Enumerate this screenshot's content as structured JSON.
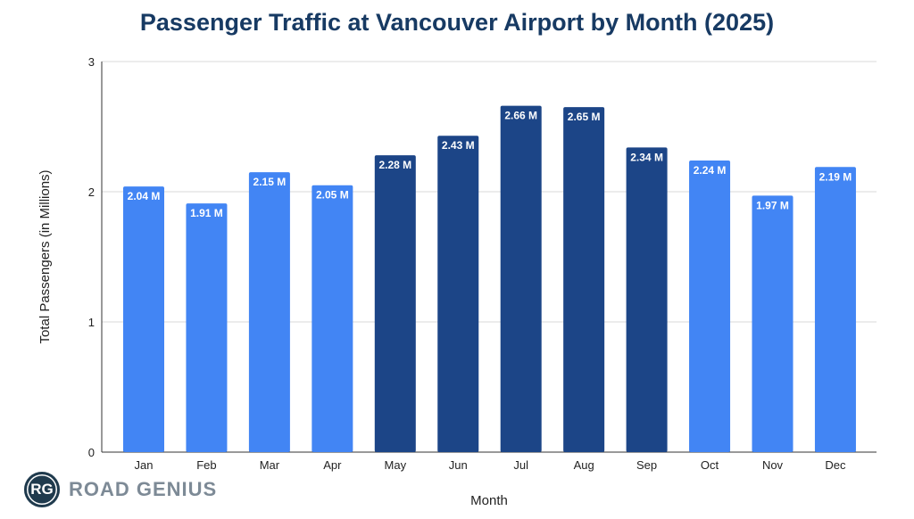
{
  "chart_data": {
    "type": "bar",
    "title": "Passenger Traffic at Vancouver Airport by Month (2025)",
    "xlabel": "Month",
    "ylabel": "Total Passengers (in Millions)",
    "ylim": [
      0,
      3
    ],
    "yticks": [
      "0",
      "1",
      "2",
      "3"
    ],
    "grid": true,
    "categories": [
      "Jan",
      "Feb",
      "Mar",
      "Apr",
      "May",
      "Jun",
      "Jul",
      "Aug",
      "Sep",
      "Oct",
      "Nov",
      "Dec"
    ],
    "values": [
      2.04,
      1.91,
      2.15,
      2.05,
      2.28,
      2.43,
      2.66,
      2.65,
      2.34,
      2.24,
      1.97,
      2.19
    ],
    "data_labels": [
      "2.04 M",
      "1.91 M",
      "2.15 M",
      "2.05 M",
      "2.28 M",
      "2.43 M",
      "2.66 M",
      "2.65 M",
      "2.34 M",
      "2.24 M",
      "1.97 M",
      "2.19 M"
    ],
    "highlighted": [
      false,
      false,
      false,
      false,
      true,
      true,
      true,
      true,
      true,
      false,
      false,
      false
    ],
    "colors": {
      "default": "#4285F4",
      "highlight": "#1C4587"
    }
  },
  "logo": {
    "initials": "RG",
    "brand": "ROAD GENIUS"
  }
}
